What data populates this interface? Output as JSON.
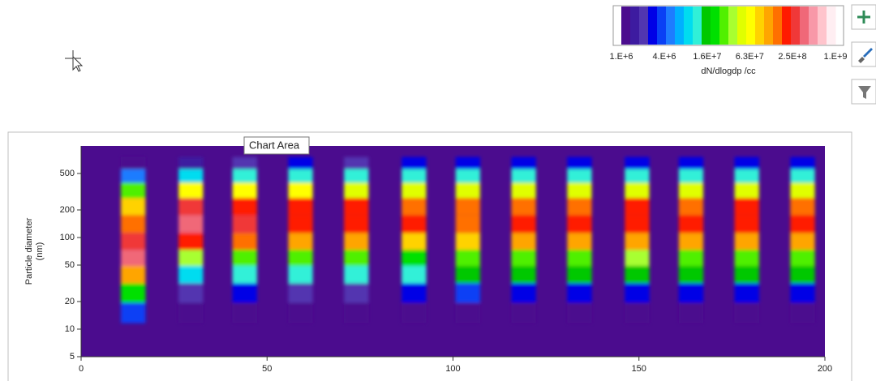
{
  "chart_data": {
    "type": "heatmap",
    "x": [
      14,
      29.5,
      44,
      59,
      74,
      89.5,
      104,
      119,
      134,
      149.5,
      164,
      179,
      194
    ],
    "y": [
      15,
      25,
      40,
      60,
      90,
      140,
      220,
      330,
      480,
      650
    ],
    "z": [
      [
        4000000.0,
        20000000.0,
        100000000.0,
        350000000.0,
        250000000.0,
        150000000.0,
        80000000.0,
        25000000.0,
        5000000.0,
        1200000.0
      ],
      [
        1000000.0,
        2000000.0,
        8000000.0,
        40000000.0,
        220000000.0,
        320000000.0,
        250000000.0,
        60000000.0,
        8000000.0,
        1500000.0
      ],
      [
        1000000.0,
        2500000.0,
        10000000.0,
        30000000.0,
        160000000.0,
        260000000.0,
        200000000.0,
        70000000.0,
        10000000.0,
        2000000.0
      ],
      [
        1000000.0,
        2000000.0,
        12000000.0,
        30000000.0,
        120000000.0,
        220000000.0,
        200000000.0,
        60000000.0,
        12000000.0,
        2500000.0
      ],
      [
        1000000.0,
        2000000.0,
        10000000.0,
        25000000.0,
        100000000.0,
        200000000.0,
        180000000.0,
        50000000.0,
        10000000.0,
        2000000.0
      ],
      [
        1000000.0,
        3000000.0,
        12000000.0,
        20000000.0,
        90000000.0,
        180000000.0,
        160000000.0,
        50000000.0,
        12000000.0,
        3000000.0
      ],
      [
        1000000.0,
        3500000.0,
        15000000.0,
        25000000.0,
        80000000.0,
        170000000.0,
        160000000.0,
        50000000.0,
        12000000.0,
        2500000.0
      ],
      [
        1000000.0,
        3000000.0,
        15000000.0,
        30000000.0,
        100000000.0,
        190000000.0,
        170000000.0,
        50000000.0,
        12000000.0,
        2500000.0
      ],
      [
        1000000.0,
        3000000.0,
        14000000.0,
        30000000.0,
        110000000.0,
        200000000.0,
        170000000.0,
        50000000.0,
        11000000.0,
        2500000.0
      ],
      [
        1000000.0,
        3000000.0,
        16000000.0,
        35000000.0,
        120000000.0,
        210000000.0,
        180000000.0,
        50000000.0,
        12000000.0,
        2500000.0
      ],
      [
        1000000.0,
        3000000.0,
        15000000.0,
        30000000.0,
        110000000.0,
        200000000.0,
        170000000.0,
        50000000.0,
        11000000.0,
        2500000.0
      ],
      [
        1000000.0,
        3000000.0,
        14000000.0,
        30000000.0,
        110000000.0,
        190000000.0,
        180000000.0,
        50000000.0,
        12000000.0,
        2500000.0
      ],
      [
        1000000.0,
        3000000.0,
        15000000.0,
        30000000.0,
        120000000.0,
        200000000.0,
        170000000.0,
        50000000.0,
        12000000.0,
        2500000.0
      ]
    ],
    "xlim": [
      0,
      200
    ],
    "xticks": [
      0,
      50,
      100,
      150,
      200
    ],
    "ylim": [
      5,
      1000
    ],
    "yticks": [
      5,
      10,
      20,
      50,
      100,
      200,
      500
    ],
    "log_y": true,
    "ylabel": [
      "Particle diameter",
      "(nm)"
    ],
    "colorbar": {
      "title": "dN/dlogdp /cc",
      "lim": [
        1000000.0,
        1000000000.0
      ],
      "log": true,
      "ticks": [
        {
          "value": 1000000.0,
          "label": "1.E+6"
        },
        {
          "value": 4000000.0,
          "label": "4.E+6"
        },
        {
          "value": 16000000.0,
          "label": "1.6E+7"
        },
        {
          "value": 63000000.0,
          "label": "6.3E+7"
        },
        {
          "value": 250000000.0,
          "label": "2.5E+8"
        },
        {
          "value": 1000000000.0,
          "label": "1.E+9"
        }
      ],
      "colors": [
        "#4b0c8e",
        "#3d1ba0",
        "#5236b0",
        "#0000e6",
        "#0a40f5",
        "#1e7cff",
        "#00b0ff",
        "#00dcf0",
        "#30f0d8",
        "#00c800",
        "#00e000",
        "#50f000",
        "#a8ff30",
        "#e0ff00",
        "#ffff00",
        "#ffd200",
        "#ffa500",
        "#ff7000",
        "#ff1a00",
        "#f03838",
        "#f06878",
        "#f898a8",
        "#ffc4cc",
        "#ffeef2"
      ]
    }
  },
  "ui": {
    "tooltip": "Chart Area"
  }
}
